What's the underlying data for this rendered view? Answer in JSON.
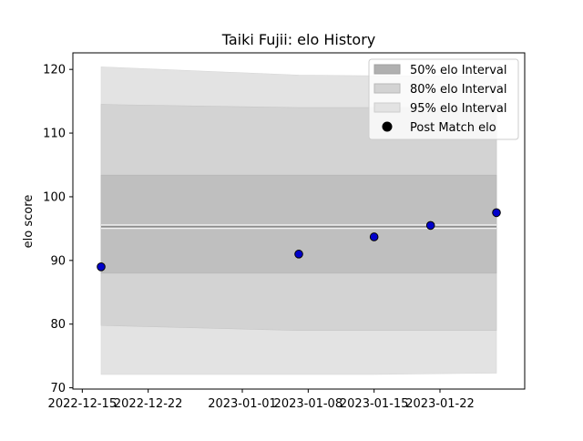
{
  "chart_data": {
    "type": "area",
    "title": "Taiki Fujii: elo History",
    "xlabel": "",
    "ylabel": "elo score",
    "x_ticks": [
      "2022-12-15",
      "2022-12-22",
      "2023-01-01",
      "2023-01-08",
      "2023-01-15",
      "2023-01-22"
    ],
    "y_ticks": [
      70,
      80,
      90,
      100,
      110,
      120
    ],
    "xlim": [
      "2022-12-14",
      "2023-01-31"
    ],
    "ylim": [
      69.8,
      122.6
    ],
    "grid": false,
    "legend_position": "top-right",
    "legend": [
      {
        "label": "50% elo Interval",
        "kind": "band50"
      },
      {
        "label": "80% elo Interval",
        "kind": "band80"
      },
      {
        "label": "95% elo Interval",
        "kind": "band95"
      },
      {
        "label": "Post Match elo",
        "kind": "marker"
      }
    ],
    "dates": [
      "2022-12-17",
      "2023-01-07",
      "2023-01-15",
      "2023-01-21",
      "2023-01-28"
    ],
    "mean": [
      95.3,
      95.3,
      95.3,
      95.3,
      95.3
    ],
    "band95": {
      "lower": [
        72.1,
        72.1,
        72.1,
        72.2,
        72.3
      ],
      "upper": [
        120.4,
        119.1,
        119.0,
        119.0,
        119.0
      ]
    },
    "band80": {
      "lower": [
        79.8,
        79.0,
        79.0,
        79.0,
        79.0
      ],
      "upper": [
        114.5,
        114.0,
        114.0,
        114.0,
        114.0
      ]
    },
    "band50": {
      "lower": [
        88.0,
        88.0,
        88.0,
        88.0,
        88.0
      ],
      "upper": [
        103.4,
        103.4,
        103.4,
        103.4,
        103.4
      ]
    },
    "series": [
      {
        "name": "Post Match elo",
        "x": [
          "2022-12-17",
          "2023-01-07",
          "2023-01-15",
          "2023-01-21",
          "2023-01-28"
        ],
        "y": [
          89.0,
          91.0,
          93.7,
          95.5,
          97.5
        ]
      }
    ],
    "colors": {
      "band50": "#bfbfbf",
      "band80": "#d3d3d3",
      "band95": "#e3e3e3",
      "mean_line": "#8c8c8c",
      "marker_fill": "#0000cc",
      "marker_edge": "#000000",
      "legend_marker": "#000000"
    }
  }
}
